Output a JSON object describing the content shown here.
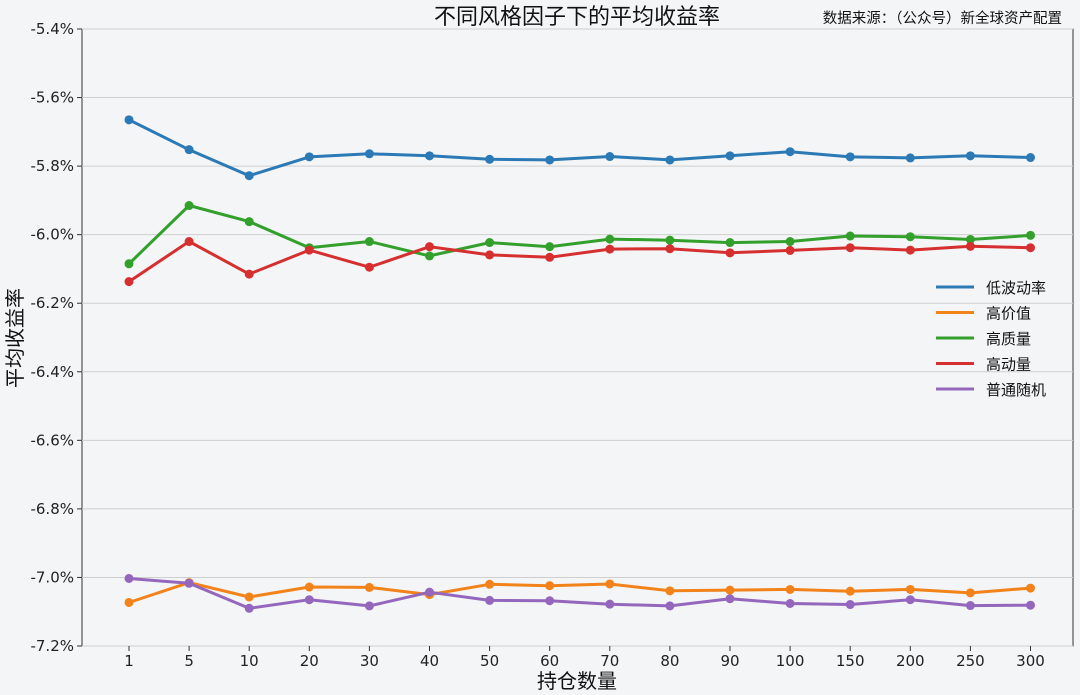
{
  "chart_data": {
    "type": "line",
    "title": "不同风格因子下的平均收益率",
    "source": "数据来源：（公众号）新全球资产配置",
    "xlabel": "持仓数量",
    "ylabel": "平均收益率",
    "categories": [
      "1",
      "5",
      "10",
      "20",
      "30",
      "40",
      "50",
      "60",
      "70",
      "80",
      "90",
      "100",
      "150",
      "200",
      "250",
      "300"
    ],
    "ylim": [
      -7.2,
      -5.4
    ],
    "yticks": [
      -5.4,
      -5.6,
      -5.8,
      -6.0,
      -6.2,
      -6.4,
      -6.6,
      -6.8,
      -7.0,
      -7.2
    ],
    "ytick_labels": [
      "-5.4%",
      "-5.6%",
      "-5.8%",
      "-6.0%",
      "-6.2%",
      "-6.4%",
      "-6.6%",
      "-6.8%",
      "-7.0%",
      "-7.2%"
    ],
    "grid": "horizontal",
    "legend_position": "center-right",
    "series": [
      {
        "name": "低波动率",
        "color": "#2b79b5",
        "values": [
          -5.665,
          -5.752,
          -5.828,
          -5.773,
          -5.764,
          -5.77,
          -5.78,
          -5.782,
          -5.772,
          -5.782,
          -5.77,
          -5.758,
          -5.773,
          -5.776,
          -5.77,
          -5.775
        ]
      },
      {
        "name": "高价值",
        "color": "#f2831b",
        "values": [
          -7.073,
          -7.015,
          -7.057,
          -7.028,
          -7.029,
          -7.05,
          -7.02,
          -7.024,
          -7.019,
          -7.039,
          -7.037,
          -7.035,
          -7.04,
          -7.035,
          -7.045,
          -7.031
        ]
      },
      {
        "name": "高质量",
        "color": "#33a02c",
        "values": [
          -6.085,
          -5.915,
          -5.962,
          -6.038,
          -6.02,
          -6.062,
          -6.023,
          -6.035,
          -6.013,
          -6.016,
          -6.023,
          -6.02,
          -6.004,
          -6.006,
          -6.014,
          -6.002
        ]
      },
      {
        "name": "高动量",
        "color": "#d62f2f",
        "values": [
          -6.137,
          -6.02,
          -6.115,
          -6.045,
          -6.095,
          -6.035,
          -6.059,
          -6.066,
          -6.042,
          -6.041,
          -6.053,
          -6.046,
          -6.038,
          -6.045,
          -6.034,
          -6.038
        ]
      },
      {
        "name": "普通随机",
        "color": "#9467bd",
        "values": [
          -7.003,
          -7.017,
          -7.09,
          -7.065,
          -7.083,
          -7.043,
          -7.067,
          -7.068,
          -7.078,
          -7.083,
          -7.062,
          -7.076,
          -7.079,
          -7.065,
          -7.082,
          -7.081
        ]
      }
    ]
  }
}
